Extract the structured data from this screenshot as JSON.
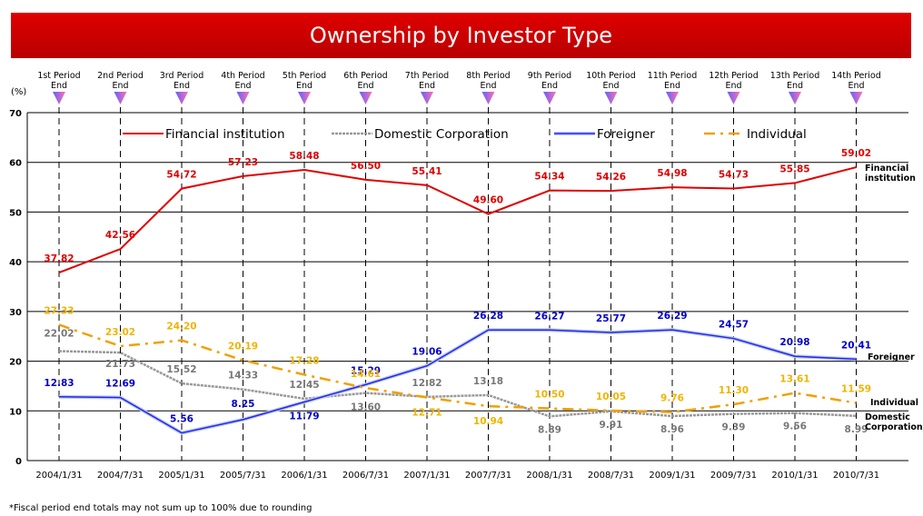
{
  "chart_data": {
    "type": "line",
    "title": "Ownership by Investor Type",
    "y_unit_label": "(%)",
    "footnote": "*Fiscal period end totals may not sum up to 100% due to rounding",
    "periods": [
      "1st Period End",
      "2nd Period End",
      "3rd Period End",
      "4th Period End",
      "5th Period End",
      "6th Period End",
      "7th Period End",
      "8th Period End",
      "9th Period End",
      "10th Period End",
      "11th Period End",
      "12th Period End",
      "13th Period End",
      "14th Period End"
    ],
    "categories": [
      "2004/1/31",
      "2004/7/31",
      "2005/1/31",
      "2005/7/31",
      "2006/1/31",
      "2006/7/31",
      "2007/1/31",
      "2007/7/31",
      "2008/1/31",
      "2008/7/31",
      "2009/1/31",
      "2009/7/31",
      "2010/1/31",
      "2010/7/31"
    ],
    "ylim": [
      0,
      70
    ],
    "yticks": [
      0,
      10,
      20,
      30,
      40,
      50,
      60,
      70
    ],
    "grid": true,
    "series": [
      {
        "name": "Financial institution",
        "end_label": "Financial institution",
        "color": "#e00000",
        "label_color": "#e00000",
        "values": [
          37.82,
          42.56,
          54.72,
          57.23,
          58.48,
          56.5,
          55.41,
          49.6,
          54.34,
          54.26,
          54.98,
          54.73,
          55.85,
          59.02
        ],
        "value_labels": [
          "37.82",
          "42.56",
          "54.72",
          "57.23",
          "58.48",
          "56.50",
          "55.41",
          "49.60",
          "54.34",
          "54.26",
          "54.98",
          "54.73",
          "55.85",
          "59.02"
        ]
      },
      {
        "name": "Domestic Corporation",
        "end_label": "Domestic Corporation",
        "color": "#999999",
        "label_color": "#777777",
        "values": [
          22.02,
          21.73,
          15.52,
          14.33,
          12.45,
          13.6,
          12.82,
          13.18,
          8.89,
          9.91,
          8.96,
          9.39,
          9.56,
          8.99
        ],
        "value_labels": [
          "22.02",
          "21.73",
          "15.52",
          "14.33",
          "12.45",
          "13.60",
          "12.82",
          "13.18",
          "8.89",
          "9.91",
          "8.96",
          "9.39",
          "9.56",
          "8.99"
        ]
      },
      {
        "name": "Foreigner",
        "end_label": "Foreigner",
        "color": "#2828e0",
        "label_color": "#0000cc",
        "values": [
          12.83,
          12.69,
          5.56,
          8.25,
          11.79,
          15.29,
          19.06,
          26.28,
          26.27,
          25.77,
          26.29,
          24.57,
          20.98,
          20.41
        ],
        "value_labels": [
          "12.83",
          "12.69",
          "5.56",
          "8.25",
          "11.79",
          "15.29",
          "19.06",
          "26.28",
          "26.27",
          "25.77",
          "26.29",
          "24.57",
          "20.98",
          "20.41"
        ]
      },
      {
        "name": "Individual",
        "end_label": "Individual",
        "color": "#f0a000",
        "label_color": "#f0b400",
        "values": [
          27.33,
          23.02,
          24.2,
          20.19,
          17.28,
          14.61,
          12.71,
          10.94,
          10.5,
          10.05,
          9.76,
          11.3,
          13.61,
          11.59
        ],
        "value_labels": [
          "27.33",
          "23.02",
          "24.20",
          "20.19",
          "17.28",
          "14.61",
          "12.71",
          "10.94",
          "10.50",
          "10.05",
          "9.76",
          "11.30",
          "13.61",
          "11.59"
        ]
      }
    ]
  }
}
